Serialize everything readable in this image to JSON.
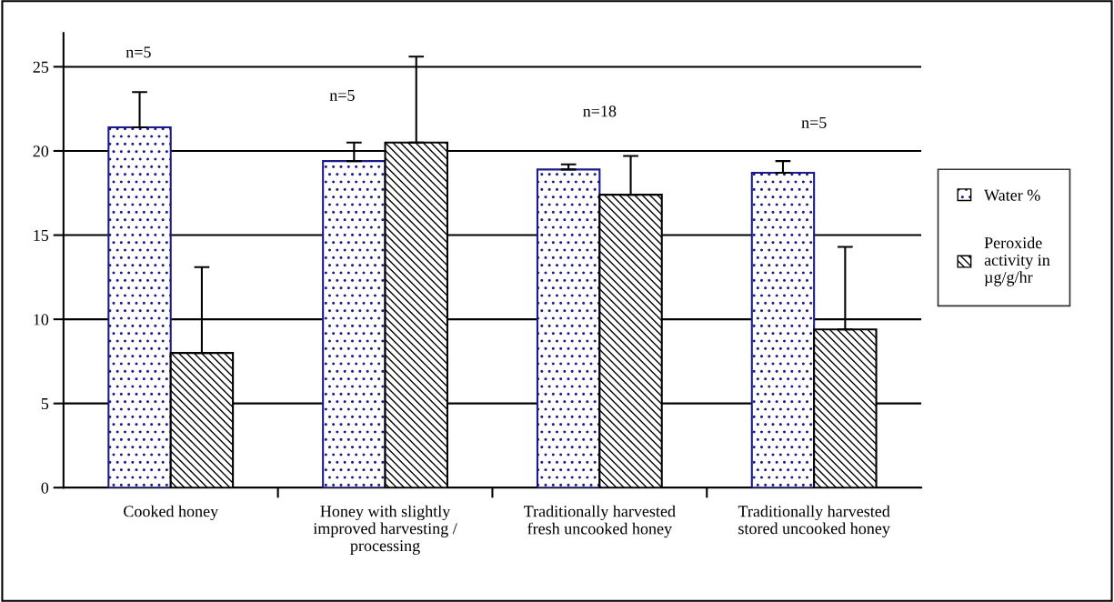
{
  "chart_data": {
    "type": "bar",
    "categories": [
      "Cooked honey",
      "Honey with slightly improved harvesting / processing",
      "Traditionally harvested fresh uncooked honey",
      "Traditionally harvested stored uncooked honey"
    ],
    "series": [
      {
        "name": "Water %",
        "color": "#1a1a8c",
        "values": [
          21.4,
          19.4,
          18.9,
          18.7
        ],
        "errors": [
          [
            21.4,
            23.5
          ],
          [
            19.4,
            20.5
          ],
          [
            18.9,
            19.2
          ],
          [
            18.7,
            19.4
          ]
        ]
      },
      {
        "name": "Peroxide activity in µg/g/hr",
        "color": "#000000",
        "values": [
          8.0,
          20.5,
          17.4,
          9.4
        ],
        "errors": [
          [
            8.0,
            13.1
          ],
          [
            20.5,
            25.6
          ],
          [
            17.4,
            19.7
          ],
          [
            9.4,
            14.3
          ]
        ]
      }
    ],
    "annotations": [
      "n=5",
      "n=5",
      "n=18",
      "n=5"
    ],
    "ylim": [
      0,
      27
    ],
    "yticks": [
      0,
      5,
      10,
      15,
      20,
      25
    ],
    "grid": "y",
    "legend": "right"
  }
}
